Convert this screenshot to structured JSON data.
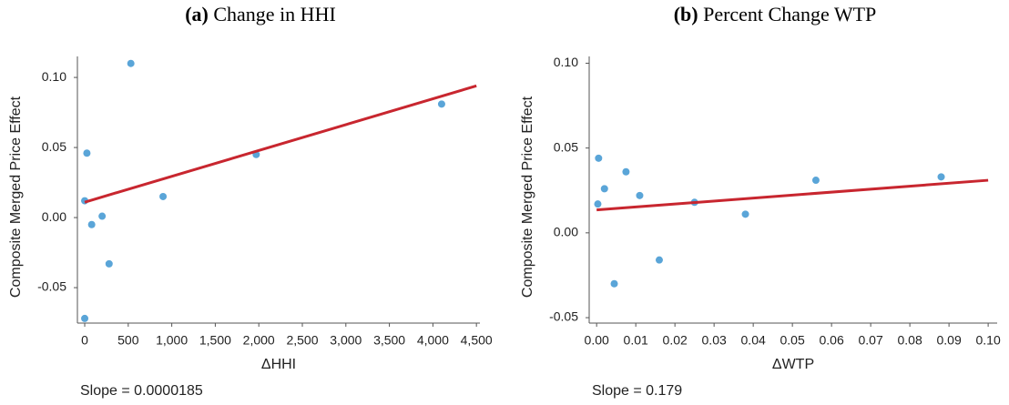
{
  "chart_data": [
    {
      "type": "scatter",
      "panel": "(a)",
      "title": "Change in HHI",
      "x_label": "ΔHHI",
      "y_label": "Composite Merged Price Effect",
      "annotation": "Slope = 0.0000185",
      "xlim": [
        -84,
        4540
      ],
      "ylim": [
        -0.0753,
        0.115
      ],
      "xticks": [
        0,
        500,
        {
          "value": 1000,
          "label": "1,000"
        },
        {
          "value": 1500,
          "label": "1,500"
        },
        {
          "value": 2000,
          "label": "2,000"
        },
        {
          "value": 2500,
          "label": "2,500"
        },
        {
          "value": 3000,
          "label": "3,000"
        },
        {
          "value": 3500,
          "label": "3,500"
        },
        {
          "value": 4000,
          "label": "4,000"
        },
        {
          "value": 4500,
          "label": "4,500"
        }
      ],
      "yticks": [
        -0.05,
        {
          "value": 0,
          "label": "0.00"
        },
        0.05,
        {
          "value": 0.1,
          "label": "0.10"
        }
      ],
      "series": [
        {
          "color": "#5aa5d8",
          "x": [
            0,
            0,
            25,
            80,
            200,
            280,
            530,
            900,
            1970,
            4100
          ],
          "values": [
            -0.072,
            0.012,
            0.046,
            -0.005,
            0.001,
            -0.033,
            0.11,
            0.015,
            0.045,
            0.081
          ]
        },
        {
          "type": "line",
          "color": "#c8262f",
          "x": [
            0,
            4500
          ],
          "values": [
            0.011,
            0.094
          ]
        }
      ]
    },
    {
      "type": "scatter",
      "panel": "(b)",
      "title": "Percent Change WTP",
      "x_label": "ΔWTP",
      "y_label": "Composite Merged Price Effect",
      "annotation": "Slope = 0.179",
      "xlim": [
        -0.0019,
        0.1023
      ],
      "ylim": [
        -0.0532,
        0.104
      ],
      "xticks": [
        {
          "value": 0,
          "label": "0.00"
        },
        0.01,
        0.02,
        0.03,
        0.04,
        0.05,
        0.06,
        0.07,
        0.08,
        0.09,
        {
          "value": 0.1,
          "label": "0.10"
        }
      ],
      "yticks": [
        -0.05,
        {
          "value": 0,
          "label": "0.00"
        },
        0.05,
        {
          "value": 0.1,
          "label": "0.10"
        }
      ],
      "series": [
        {
          "color": "#5aa5d8",
          "x": [
            0.0005,
            0.0003,
            0.002,
            0.0045,
            0.0075,
            0.011,
            0.016,
            0.025,
            0.038,
            0.056,
            0.088
          ],
          "values": [
            0.044,
            0.017,
            0.026,
            -0.03,
            0.036,
            0.022,
            -0.016,
            0.018,
            0.011,
            0.031,
            0.033
          ]
        },
        {
          "type": "line",
          "color": "#c8262f",
          "x": [
            0,
            0.1
          ],
          "values": [
            0.0135,
            0.031
          ]
        }
      ]
    }
  ]
}
